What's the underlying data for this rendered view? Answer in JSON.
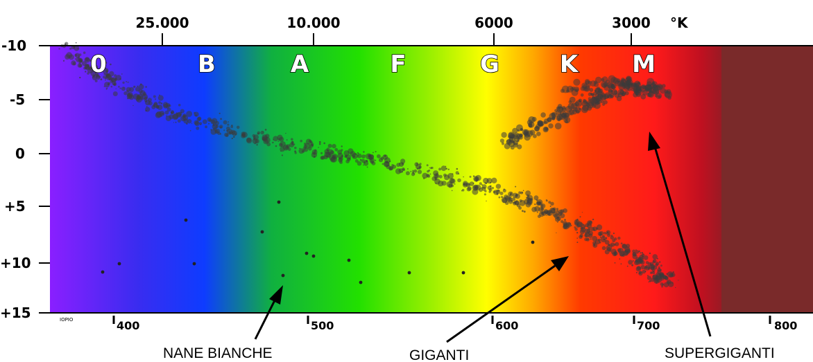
{
  "temperature_axis": {
    "unit": "°K",
    "ticks": [
      "25.000",
      "10.000",
      "6000",
      "3000"
    ]
  },
  "magnitude_axis": {
    "ticks": [
      "-10",
      "-5",
      "0",
      "+5",
      "+10",
      "+15"
    ]
  },
  "wavelength_axis": {
    "ticks": [
      "400",
      "500",
      "600",
      "700",
      "800"
    ]
  },
  "spectral_classes": [
    "0",
    "B",
    "A",
    "F",
    "G",
    "K",
    "M"
  ],
  "annotations": {
    "white_dwarfs": "NANE BIANCHE",
    "giants": "GIGANTI",
    "supergiants": "SUPERGIGANTI"
  },
  "credit": "IOPIO",
  "colors": {
    "spectrum": [
      "#8a1fff",
      "#3a2cf0",
      "#0e3cff",
      "#10b040",
      "#22e000",
      "#9ef000",
      "#ffff00",
      "#ffa800",
      "#ff3a00",
      "#ff1a1a",
      "#c01020",
      "#7a2a2a"
    ],
    "star": "#3a3a3a"
  }
}
